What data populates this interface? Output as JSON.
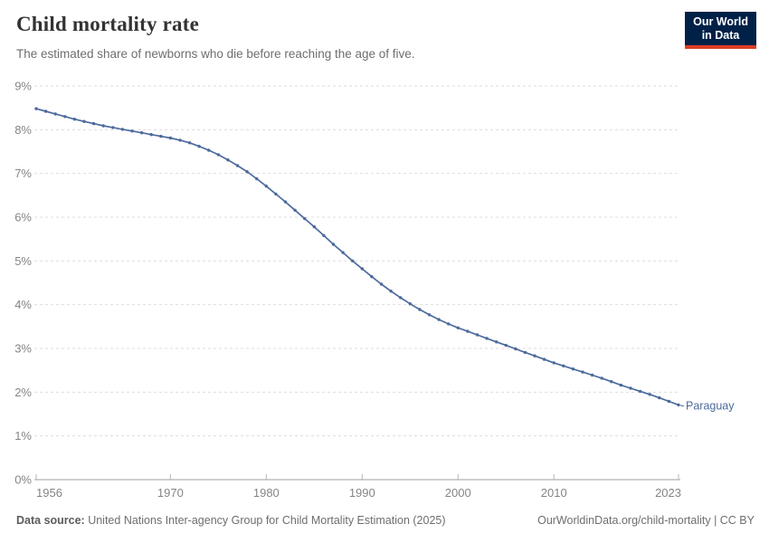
{
  "header": {
    "title": "Child mortality rate",
    "subtitle": "The estimated share of newborns who die before reaching the age of five.",
    "logo": {
      "line1": "Our World",
      "line2": "in Data"
    }
  },
  "footer": {
    "source_label": "Data source:",
    "source_text": " United Nations Inter-agency Group for Child Mortality Estimation (2025)",
    "link_text": "OurWorldinData.org/child-mortality | CC BY"
  },
  "chart_data": {
    "type": "line",
    "title": "Child mortality rate",
    "subtitle": "The estimated share of newborns who die before reaching the age of five.",
    "entity_label": "Paraguay",
    "unit": "%",
    "grid": true,
    "xlim": [
      1956,
      2023
    ],
    "ylim": [
      0,
      9
    ],
    "x_ticks": [
      1956,
      1970,
      1980,
      1990,
      2000,
      2010,
      2023
    ],
    "x_tick_labels": [
      "1956",
      "1970",
      "1980",
      "1990",
      "2000",
      "2010",
      "2023"
    ],
    "y_ticks": [
      0,
      1,
      2,
      3,
      4,
      5,
      6,
      7,
      8,
      9
    ],
    "y_tick_labels": [
      "0%",
      "1%",
      "2%",
      "3%",
      "4%",
      "5%",
      "6%",
      "7%",
      "8%",
      "9%"
    ],
    "x": [
      1956,
      1957,
      1958,
      1959,
      1960,
      1961,
      1962,
      1963,
      1964,
      1965,
      1966,
      1967,
      1968,
      1969,
      1970,
      1971,
      1972,
      1973,
      1974,
      1975,
      1976,
      1977,
      1978,
      1979,
      1980,
      1981,
      1982,
      1983,
      1984,
      1985,
      1986,
      1987,
      1988,
      1989,
      1990,
      1991,
      1992,
      1993,
      1994,
      1995,
      1996,
      1997,
      1998,
      1999,
      2000,
      2001,
      2002,
      2003,
      2004,
      2005,
      2006,
      2007,
      2008,
      2009,
      2010,
      2011,
      2012,
      2013,
      2014,
      2015,
      2016,
      2017,
      2018,
      2019,
      2020,
      2021,
      2022,
      2023
    ],
    "series": [
      {
        "name": "Paraguay",
        "values": [
          8.48,
          8.42,
          8.36,
          8.3,
          8.24,
          8.19,
          8.14,
          8.09,
          8.05,
          8.01,
          7.97,
          7.93,
          7.89,
          7.85,
          7.81,
          7.76,
          7.7,
          7.62,
          7.53,
          7.43,
          7.31,
          7.18,
          7.04,
          6.88,
          6.71,
          6.53,
          6.35,
          6.16,
          5.97,
          5.78,
          5.58,
          5.38,
          5.19,
          5.0,
          4.82,
          4.64,
          4.47,
          4.31,
          4.16,
          4.02,
          3.89,
          3.77,
          3.66,
          3.56,
          3.47,
          3.39,
          3.31,
          3.23,
          3.15,
          3.07,
          2.99,
          2.91,
          2.83,
          2.75,
          2.67,
          2.6,
          2.53,
          2.46,
          2.39,
          2.32,
          2.24,
          2.16,
          2.09,
          2.02,
          1.95,
          1.87,
          1.79,
          1.71
        ]
      }
    ],
    "colors": {
      "line": "#4c6a9c",
      "entity_label": "#4c6a9c",
      "grid": "#dddddd",
      "axis": "#9e9e9e",
      "tick": "#b5b5b5",
      "axis_text": "#858585"
    },
    "legend_position": "end-of-line"
  }
}
